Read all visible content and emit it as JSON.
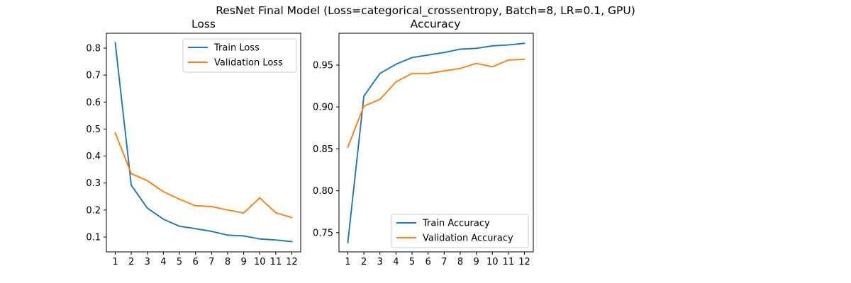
{
  "figure": {
    "suptitle": "ResNet Final Model (Loss=categorical_crossentropy, Batch=8, LR=0.1, GPU)"
  },
  "colors": {
    "train": "#1f77b4",
    "validation": "#ff7f0e",
    "axis": "#000000",
    "legend_border": "#cccccc"
  },
  "chart_data": [
    {
      "type": "line",
      "title": "Loss",
      "xlabel": "",
      "ylabel": "",
      "x": [
        1,
        2,
        3,
        4,
        5,
        6,
        7,
        8,
        9,
        10,
        11,
        12
      ],
      "xticks": [
        1,
        2,
        3,
        4,
        5,
        6,
        7,
        8,
        9,
        10,
        11,
        12
      ],
      "xlim": [
        0.45,
        12.55
      ],
      "ylim": [
        0.045,
        0.855
      ],
      "yticks": [
        0.1,
        0.2,
        0.3,
        0.4,
        0.5,
        0.6,
        0.7,
        0.8
      ],
      "ytick_labels": [
        "0.1",
        "0.2",
        "0.3",
        "0.4",
        "0.5",
        "0.6",
        "0.7",
        "0.8"
      ],
      "grid": false,
      "legend_position": "top-right",
      "series": [
        {
          "name": "Train Loss",
          "color_key": "train",
          "values": [
            0.82,
            0.292,
            0.207,
            0.166,
            0.14,
            0.131,
            0.121,
            0.107,
            0.104,
            0.093,
            0.089,
            0.083
          ]
        },
        {
          "name": "Validation Loss",
          "color_key": "validation",
          "values": [
            0.486,
            0.335,
            0.309,
            0.268,
            0.24,
            0.216,
            0.213,
            0.2,
            0.189,
            0.245,
            0.19,
            0.172
          ]
        }
      ]
    },
    {
      "type": "line",
      "title": "Accuracy",
      "xlabel": "",
      "ylabel": "",
      "x": [
        1,
        2,
        3,
        4,
        5,
        6,
        7,
        8,
        9,
        10,
        11,
        12
      ],
      "xticks": [
        1,
        2,
        3,
        4,
        5,
        6,
        7,
        8,
        9,
        10,
        11,
        12
      ],
      "xlim": [
        0.45,
        12.55
      ],
      "ylim": [
        0.727,
        0.988
      ],
      "yticks": [
        0.75,
        0.8,
        0.85,
        0.9,
        0.95
      ],
      "ytick_labels": [
        "0.75",
        "0.80",
        "0.85",
        "0.90",
        "0.95"
      ],
      "grid": false,
      "legend_position": "bottom-right",
      "series": [
        {
          "name": "Train Accuracy",
          "color_key": "train",
          "values": [
            0.738,
            0.913,
            0.94,
            0.951,
            0.959,
            0.962,
            0.965,
            0.969,
            0.97,
            0.973,
            0.974,
            0.976
          ]
        },
        {
          "name": "Validation Accuracy",
          "color_key": "validation",
          "values": [
            0.852,
            0.901,
            0.909,
            0.93,
            0.94,
            0.94,
            0.943,
            0.946,
            0.952,
            0.948,
            0.956,
            0.957
          ]
        }
      ]
    }
  ]
}
